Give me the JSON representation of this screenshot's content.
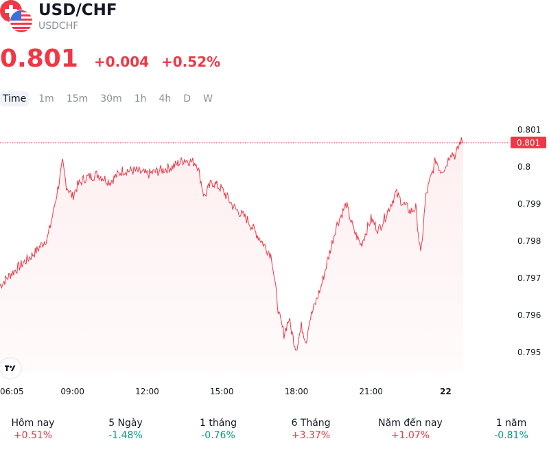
{
  "header": {
    "title": "USD/CHF",
    "ticker": "USDCHF",
    "price": "0.801",
    "change": "+0.004",
    "change_pct": "+0.52%",
    "color_up": "#f23645",
    "color_down": "#089981"
  },
  "tabs": [
    "Time",
    "1m",
    "15m",
    "30m",
    "1h",
    "4h",
    "D",
    "W"
  ],
  "active_tab": "Time",
  "performance": [
    {
      "label": "Hôm nay",
      "value": "+0.51%",
      "dir": "up"
    },
    {
      "label": "5 Ngày",
      "value": "-1.48%",
      "dir": "down"
    },
    {
      "label": "1 tháng",
      "value": "-0.76%",
      "dir": "down"
    },
    {
      "label": "6 Tháng",
      "value": "+3.37%",
      "dir": "up"
    },
    {
      "label": "Năm đến nay",
      "value": "+1.07%",
      "dir": "up"
    },
    {
      "label": "1 năm",
      "value": "-0.81%",
      "dir": "down"
    }
  ],
  "chart_data": {
    "type": "area",
    "x_tick_labels": [
      "06:05",
      "09:00",
      "12:00",
      "15:00",
      "18:00",
      "21:00",
      "22"
    ],
    "x_tick_hours": [
      6.083,
      9,
      12,
      15,
      18,
      21,
      24
    ],
    "y_ticks": [
      0.801,
      0.8,
      0.799,
      0.798,
      0.797,
      0.796,
      0.795
    ],
    "ylim": [
      0.7945,
      0.8015
    ],
    "xlim_hours": [
      6.083,
      26.5
    ],
    "last_price_label": "0.801",
    "last_price": 0.80065,
    "line_color": "#f23645",
    "x_hours": [
      6.083,
      6.5,
      7.0,
      7.5,
      8.0,
      8.2,
      8.4,
      8.6,
      8.75,
      9.0,
      9.2,
      9.5,
      10.0,
      10.5,
      11.0,
      11.5,
      12.0,
      12.5,
      13.0,
      13.5,
      14.0,
      14.3,
      14.6,
      15.0,
      15.5,
      16.0,
      16.5,
      17.0,
      17.3,
      17.5,
      17.7,
      17.9,
      18.0,
      18.2,
      18.4,
      18.5,
      18.7,
      18.9,
      19.0,
      19.3,
      19.6,
      20.0,
      20.3,
      20.6,
      21.0,
      21.3,
      21.6,
      22.0,
      22.3,
      22.6,
      22.8,
      23.0,
      23.2,
      23.4,
      23.6,
      23.8,
      24.0,
      24.2,
      24.4,
      24.6,
      24.7
    ],
    "y_values": [
      0.7968,
      0.7971,
      0.7974,
      0.7977,
      0.7981,
      0.7987,
      0.7994,
      0.8001,
      0.7995,
      0.7992,
      0.7995,
      0.7997,
      0.7998,
      0.7996,
      0.7999,
      0.7999,
      0.7998,
      0.7999,
      0.8,
      0.8002,
      0.8001,
      0.7992,
      0.7996,
      0.7994,
      0.7989,
      0.7986,
      0.7981,
      0.7976,
      0.796,
      0.7955,
      0.7959,
      0.7953,
      0.7951,
      0.7957,
      0.7953,
      0.7958,
      0.7962,
      0.7966,
      0.7968,
      0.7976,
      0.7984,
      0.799,
      0.7983,
      0.7979,
      0.7986,
      0.7983,
      0.7987,
      0.7993,
      0.799,
      0.7988,
      0.7989,
      0.7976,
      0.7992,
      0.7997,
      0.8002,
      0.7999,
      0.8,
      0.8004,
      0.8003,
      0.8007,
      0.80065
    ]
  }
}
